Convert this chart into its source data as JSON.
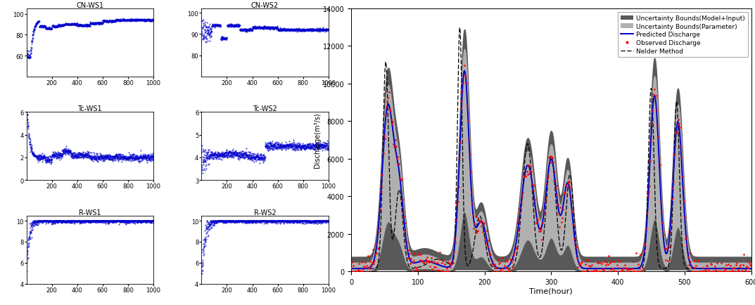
{
  "cn_ws1_title": "CN-WS1",
  "cn_ws2_title": "CN-WS2",
  "tc_ws1_title": "Tc-WS1",
  "tc_ws2_title": "Tc-WS2",
  "r_ws1_title": "R-WS1",
  "r_ws2_title": "R-WS2",
  "small_xlim": [
    0,
    1000
  ],
  "small_xticks": [
    200,
    400,
    600,
    800,
    1000
  ],
  "cn_ws1_ylim": [
    40,
    105
  ],
  "cn_ws1_yticks": [
    60,
    80,
    100
  ],
  "cn_ws2_ylim": [
    70,
    102
  ],
  "cn_ws2_yticks": [
    80,
    90,
    100
  ],
  "tc_ws1_ylim": [
    0,
    6
  ],
  "tc_ws1_yticks": [
    0,
    2,
    4,
    6
  ],
  "tc_ws2_ylim": [
    3,
    6
  ],
  "tc_ws2_yticks": [
    3,
    4,
    5,
    6
  ],
  "r_ws1_ylim": [
    4,
    10.5
  ],
  "r_ws1_yticks": [
    4,
    6,
    8,
    10
  ],
  "r_ws2_ylim": [
    4,
    10.5
  ],
  "r_ws2_yticks": [
    4,
    6,
    8,
    10
  ],
  "main_xlim": [
    0,
    600
  ],
  "main_xticks": [
    0,
    100,
    200,
    300,
    400,
    500,
    600
  ],
  "main_ylim": [
    0,
    14000
  ],
  "main_yticks": [
    0,
    2000,
    4000,
    6000,
    8000,
    10000,
    12000,
    14000
  ],
  "main_xlabel": "Time(hour)",
  "main_ylabel": "Discharge(m³/s)",
  "color_blue": "#0000cc",
  "color_red": "#cc0000",
  "color_dark_gray": "#666666",
  "color_light_gray": "#aaaaaa",
  "color_black": "#000000"
}
